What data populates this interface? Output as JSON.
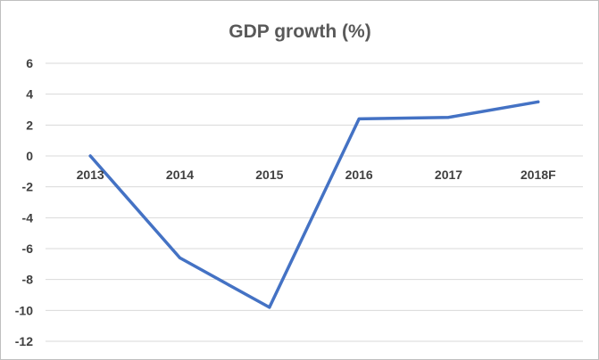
{
  "chart_data": {
    "type": "line",
    "title": "GDP growth (%)",
    "xlabel": "",
    "ylabel": "",
    "categories": [
      "2013",
      "2014",
      "2015",
      "2016",
      "2017",
      "2018F"
    ],
    "series": [
      {
        "values": [
          0.0,
          -6.6,
          -9.8,
          2.4,
          2.5,
          3.5
        ],
        "color": "#4472c4"
      }
    ],
    "ylim": [
      -12,
      6
    ],
    "yticks": [
      6,
      4,
      2,
      0,
      -2,
      -4,
      -6,
      -8,
      -10,
      -12
    ],
    "grid": true,
    "legend": "none",
    "x_tick_labels_position": "at zero line"
  }
}
